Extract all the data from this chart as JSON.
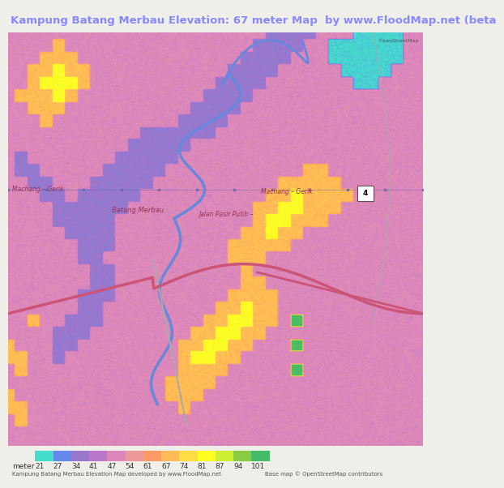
{
  "title": "Kampung Batang Merbau Elevation: 67 meter Map  by www.FloodMap.net (beta",
  "title_color": "#8888ff",
  "title_fontsize": 9.5,
  "bg_color": "#f0eee8",
  "colorbar_labels": [
    "21",
    "27",
    "34",
    "41",
    "47",
    "54",
    "61",
    "67",
    "74",
    "81",
    "87",
    "94",
    "101"
  ],
  "colorbar_colors": [
    "#44ddcc",
    "#6688ee",
    "#9977cc",
    "#bb77cc",
    "#dd88bb",
    "#ee9999",
    "#ff9966",
    "#ffbb55",
    "#ffdd44",
    "#ffff22",
    "#ccee33",
    "#88cc44",
    "#44bb66"
  ],
  "colorbar_label": "meter",
  "footer_left": "Kampung Batang Merbau Elevation Map developed by www.FloodMap.net",
  "footer_right": "Base map © OpenStreetMap contributors",
  "osm_logo_text": "©penStreetMap",
  "road_color": "#cc5577",
  "river_color": "#6688dd",
  "gray_road_color": "#aaaaaa",
  "grid_line_color": "#6666aa",
  "label_color": "#993355",
  "badge_num": "4"
}
